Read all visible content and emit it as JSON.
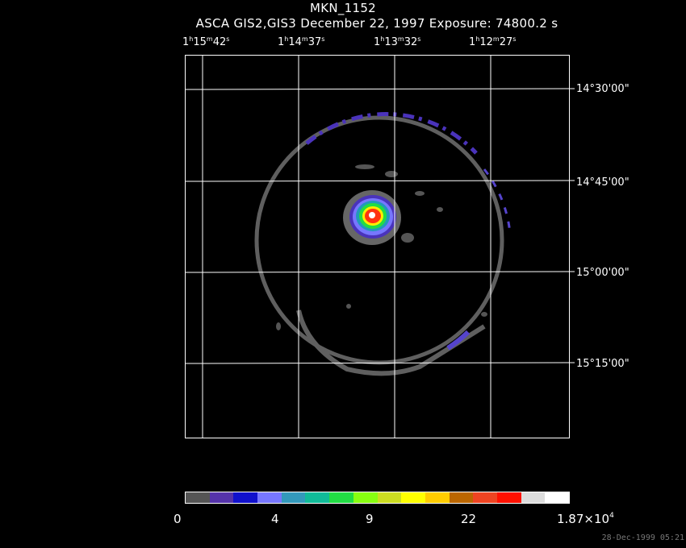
{
  "header": {
    "title": "MKN_1152",
    "subtitle": "ASCA GIS2,GIS3 December 22, 1997 Exposure: 74800.2 s"
  },
  "ra_labels": [
    {
      "h": "1",
      "m": "15",
      "s": "42"
    },
    {
      "h": "1",
      "m": "14",
      "s": "37"
    },
    {
      "h": "1",
      "m": "13",
      "s": "32"
    },
    {
      "h": "1",
      "m": "12",
      "s": "27"
    }
  ],
  "dec_labels": [
    "14°30'00\"",
    "14°45'00\"",
    "15°00'00\"",
    "15°15'00\""
  ],
  "colorbar": {
    "colors": [
      "#555555",
      "#5533aa",
      "#1111cc",
      "#7777ff",
      "#3399bb",
      "#11bb99",
      "#22dd44",
      "#88ff11",
      "#ccdd22",
      "#ffff00",
      "#ffcc00",
      "#bb6600",
      "#ee4422",
      "#ff1100",
      "#dddddd",
      "#ffffff"
    ],
    "labels": {
      "l0": "0",
      "l1": "4",
      "l2": "9",
      "l3": "22",
      "l4_mant": "1.87×10",
      "l4_exp": "4"
    }
  },
  "footer": {
    "timestamp": "28-Dec-1999 05:21"
  }
}
